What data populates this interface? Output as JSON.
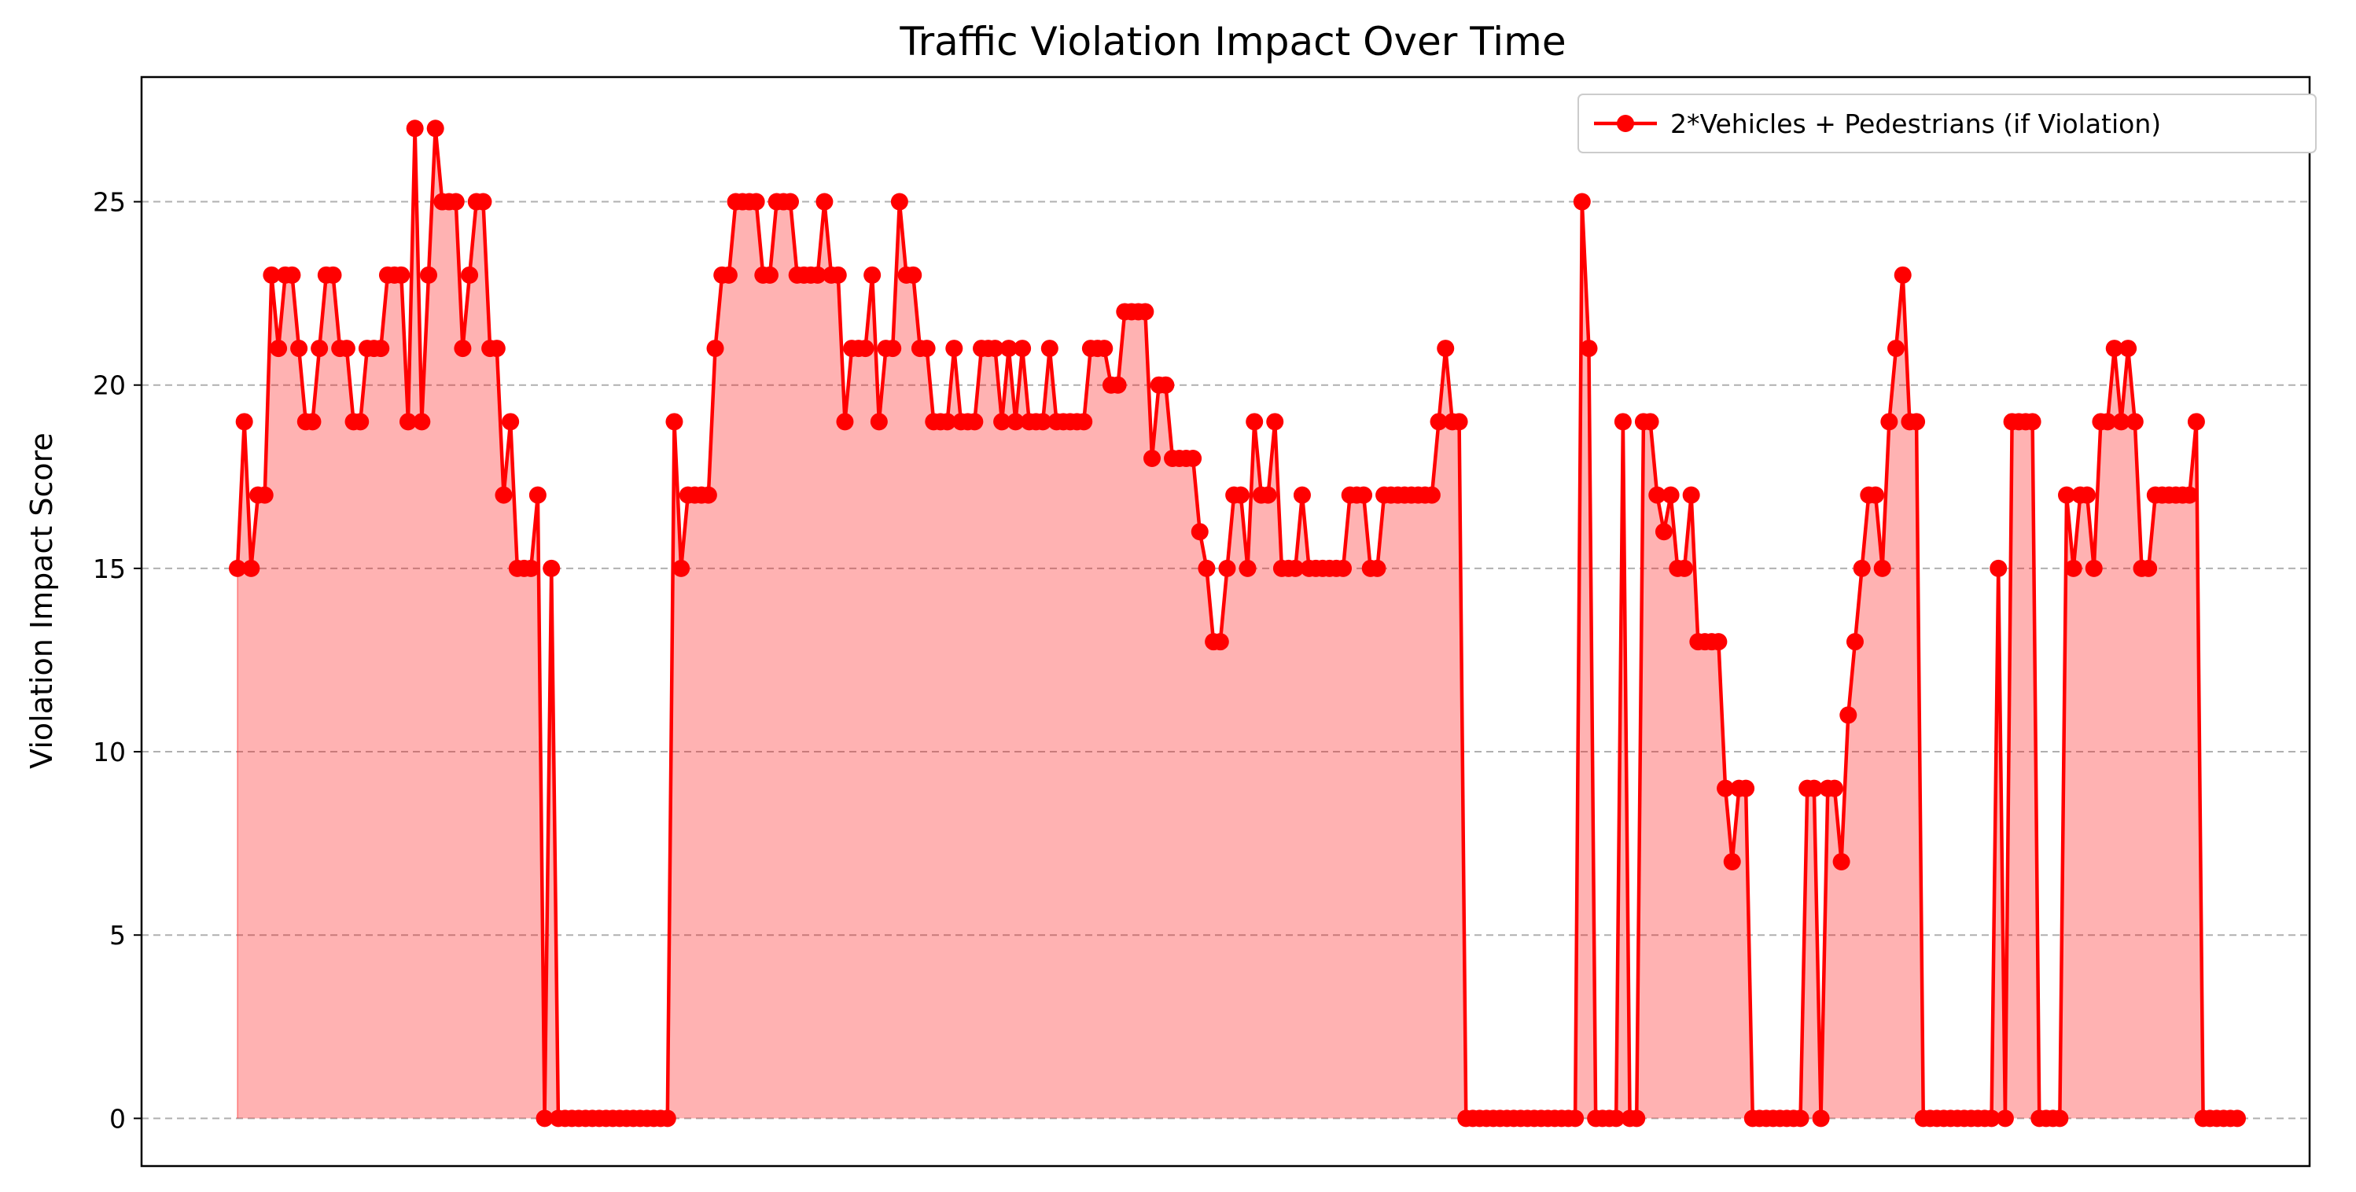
{
  "chart_data": {
    "type": "area",
    "title": "Traffic Violation Impact Over Time",
    "xlabel": "",
    "ylabel": "Violation Impact Score",
    "ylim": [
      -1.3,
      28.4
    ],
    "yticks": [
      0,
      5,
      10,
      15,
      20,
      25
    ],
    "grid": "y-dashed",
    "legend_position": "top-right",
    "colors": {
      "line": "#ff0000",
      "fill": "#ff0000",
      "fill_opacity": 0.3,
      "grid": "#b0b0b0"
    },
    "series": [
      {
        "name": "2*Vehicles + Pedestrians (if Violation)",
        "values": [
          15,
          19,
          15,
          17,
          17,
          23,
          21,
          23,
          23,
          21,
          19,
          19,
          21,
          23,
          23,
          21,
          21,
          19,
          19,
          21,
          21,
          21,
          23,
          23,
          23,
          19,
          27,
          19,
          23,
          27,
          25,
          25,
          25,
          21,
          23,
          25,
          25,
          21,
          21,
          17,
          19,
          15,
          15,
          15,
          17,
          0,
          15,
          0,
          0,
          0,
          0,
          0,
          0,
          0,
          0,
          0,
          0,
          0,
          0,
          0,
          0,
          0,
          0,
          0,
          19,
          15,
          17,
          17,
          17,
          17,
          21,
          23,
          23,
          25,
          25,
          25,
          25,
          23,
          23,
          25,
          25,
          25,
          23,
          23,
          23,
          23,
          25,
          23,
          23,
          19,
          21,
          21,
          21,
          23,
          19,
          21,
          21,
          25,
          23,
          23,
          21,
          21,
          19,
          19,
          19,
          21,
          19,
          19,
          19,
          21,
          21,
          21,
          19,
          21,
          19,
          21,
          19,
          19,
          19,
          21,
          19,
          19,
          19,
          19,
          19,
          21,
          21,
          21,
          20,
          20,
          22,
          22,
          22,
          22,
          18,
          20,
          20,
          18,
          18,
          18,
          18,
          16,
          15,
          13,
          13,
          15,
          17,
          17,
          15,
          19,
          17,
          17,
          19,
          15,
          15,
          15,
          17,
          15,
          15,
          15,
          15,
          15,
          15,
          17,
          17,
          17,
          15,
          15,
          17,
          17,
          17,
          17,
          17,
          17,
          17,
          17,
          19,
          21,
          19,
          19,
          0,
          0,
          0,
          0,
          0,
          0,
          0,
          0,
          0,
          0,
          0,
          0,
          0,
          0,
          0,
          0,
          0,
          25,
          21,
          0,
          0,
          0,
          0,
          19,
          0,
          0,
          19,
          19,
          17,
          16,
          17,
          15,
          15,
          17,
          13,
          13,
          13,
          13,
          9,
          7,
          9,
          9,
          0,
          0,
          0,
          0,
          0,
          0,
          0,
          0,
          9,
          9,
          0,
          9,
          9,
          7,
          11,
          13,
          15,
          17,
          17,
          15,
          19,
          21,
          23,
          19,
          19,
          0,
          0,
          0,
          0,
          0,
          0,
          0,
          0,
          0,
          0,
          0,
          15,
          0,
          19,
          19,
          19,
          19,
          0,
          0,
          0,
          0,
          17,
          15,
          17,
          17,
          15,
          19,
          19,
          21,
          19,
          21,
          19,
          15,
          15,
          17,
          17,
          17,
          17,
          17,
          17,
          19,
          0,
          0,
          0,
          0,
          0,
          0
        ]
      }
    ]
  }
}
